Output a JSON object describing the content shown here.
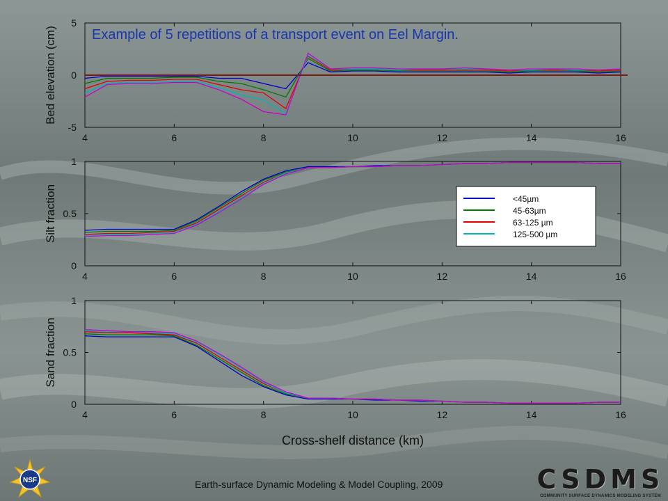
{
  "slide": {
    "footer": "Earth-surface Dynamic Modeling & Model Coupling, 2009",
    "logos": {
      "nsf": {
        "text": "NSF",
        "icon": "nsf-logo-icon"
      },
      "csdms": {
        "word": "CSDMS",
        "subtitle": "COMMUNITY SURFACE DYNAMICS MODELING SYSTEM",
        "icon": "csdms-logo-icon"
      }
    }
  },
  "chart_data": [
    {
      "type": "line",
      "title": "Example of 5 repetitions of a transport event on Eel Margin.",
      "xlabel": "",
      "ylabel": "Bed elevation (cm)",
      "xlim": [
        4,
        16
      ],
      "ylim": [
        -5,
        5
      ],
      "xticks": [
        "4",
        "6",
        "8",
        "10",
        "12",
        "14",
        "16"
      ],
      "yticks": [
        "-5",
        "0",
        "5"
      ],
      "reference_line": {
        "y": 0,
        "color": "#7a1a10"
      },
      "x": [
        4,
        4.5,
        5,
        5.5,
        6,
        6.5,
        7,
        7.5,
        8,
        8.5,
        9,
        9.5,
        10,
        10.5,
        11,
        11.5,
        12,
        12.5,
        13,
        13.5,
        14,
        14.5,
        15,
        15.5,
        16
      ],
      "series": [
        {
          "color": "#0000cc",
          "values": [
            -0.3,
            -0.1,
            -0.1,
            -0.1,
            -0.1,
            -0.1,
            -0.3,
            -0.3,
            -0.8,
            -1.3,
            1.2,
            0.3,
            0.4,
            0.4,
            0.3,
            0.3,
            0.3,
            0.3,
            0.3,
            0.2,
            0.3,
            0.3,
            0.3,
            0.2,
            0.3
          ]
        },
        {
          "color": "#007a00",
          "values": [
            -0.8,
            -0.3,
            -0.3,
            -0.3,
            -0.2,
            -0.2,
            -0.6,
            -0.8,
            -1.4,
            -2.1,
            1.6,
            0.4,
            0.5,
            0.5,
            0.4,
            0.4,
            0.4,
            0.4,
            0.4,
            0.3,
            0.4,
            0.4,
            0.4,
            0.3,
            0.4
          ]
        },
        {
          "color": "#e00000",
          "values": [
            -1.3,
            -0.6,
            -0.5,
            -0.5,
            -0.4,
            -0.4,
            -0.9,
            -1.4,
            -1.7,
            -3.2,
            1.8,
            0.5,
            0.6,
            0.6,
            0.5,
            0.5,
            0.5,
            0.5,
            0.5,
            0.4,
            0.5,
            0.5,
            0.5,
            0.4,
            0.5
          ]
        },
        {
          "color": "#00b5b5",
          "values": [
            -1.7,
            -0.8,
            -0.7,
            -0.7,
            -0.6,
            -0.6,
            -1.2,
            -1.9,
            -2.4,
            -3.7,
            1.9,
            0.6,
            0.6,
            0.6,
            0.5,
            0.6,
            0.6,
            0.6,
            0.6,
            0.5,
            0.5,
            0.6,
            0.5,
            0.5,
            0.6
          ]
        },
        {
          "color": "#cc00cc",
          "values": [
            -2.1,
            -0.9,
            -0.8,
            -0.8,
            -0.7,
            -0.7,
            -1.4,
            -2.3,
            -3.5,
            -3.8,
            2.1,
            0.6,
            0.7,
            0.7,
            0.6,
            0.6,
            0.6,
            0.7,
            0.6,
            0.5,
            0.6,
            0.6,
            0.6,
            0.5,
            0.6
          ]
        }
      ]
    },
    {
      "type": "line",
      "title": "",
      "xlabel": "",
      "ylabel": "Silt fraction",
      "xlim": [
        4,
        16
      ],
      "ylim": [
        0,
        1
      ],
      "xticks": [
        "4",
        "6",
        "8",
        "10",
        "12",
        "14",
        "16"
      ],
      "yticks": [
        "0",
        "0.5",
        "1"
      ],
      "legend": {
        "placement": "right-middle",
        "entries": [
          {
            "label": "<45µm",
            "color": "#0000cc"
          },
          {
            "label": "45-63µm",
            "color": "#007a00"
          },
          {
            "label": "63-125 µm",
            "color": "#e00000"
          },
          {
            "label": "125-500 µm",
            "color": "#00b5b5"
          }
        ]
      },
      "x": [
        4,
        4.5,
        5,
        5.5,
        6,
        6.5,
        7,
        7.5,
        8,
        8.5,
        9,
        9.5,
        10,
        10.5,
        11,
        11.5,
        12,
        12.5,
        13,
        13.5,
        14,
        14.5,
        15,
        15.5,
        16
      ],
      "series": [
        {
          "color": "#0000cc",
          "values": [
            0.34,
            0.35,
            0.35,
            0.35,
            0.35,
            0.44,
            0.57,
            0.71,
            0.83,
            0.91,
            0.95,
            0.95,
            0.95,
            0.96,
            0.96,
            0.96,
            0.97,
            0.98,
            0.98,
            0.99,
            0.99,
            0.99,
            0.99,
            0.98,
            0.98
          ]
        },
        {
          "color": "#007a00",
          "values": [
            0.32,
            0.33,
            0.33,
            0.33,
            0.34,
            0.43,
            0.56,
            0.69,
            0.82,
            0.9,
            0.94,
            0.94,
            0.95,
            0.95,
            0.96,
            0.96,
            0.97,
            0.98,
            0.98,
            0.99,
            0.99,
            0.99,
            0.99,
            0.98,
            0.98
          ]
        },
        {
          "color": "#e00000",
          "values": [
            0.3,
            0.31,
            0.31,
            0.32,
            0.33,
            0.41,
            0.54,
            0.67,
            0.8,
            0.89,
            0.94,
            0.94,
            0.95,
            0.95,
            0.96,
            0.96,
            0.97,
            0.98,
            0.98,
            0.99,
            0.99,
            0.99,
            0.99,
            0.98,
            0.98
          ]
        },
        {
          "color": "#00b5b5",
          "values": [
            0.29,
            0.3,
            0.3,
            0.31,
            0.32,
            0.4,
            0.52,
            0.65,
            0.79,
            0.89,
            0.94,
            0.94,
            0.95,
            0.95,
            0.96,
            0.96,
            0.97,
            0.98,
            0.98,
            0.99,
            0.99,
            0.99,
            0.99,
            0.98,
            0.98
          ]
        },
        {
          "color": "#cc00cc",
          "values": [
            0.28,
            0.29,
            0.29,
            0.3,
            0.31,
            0.39,
            0.51,
            0.64,
            0.78,
            0.88,
            0.94,
            0.94,
            0.95,
            0.95,
            0.96,
            0.96,
            0.97,
            0.98,
            0.98,
            0.99,
            0.99,
            0.99,
            0.99,
            0.98,
            0.98
          ]
        }
      ]
    },
    {
      "type": "line",
      "title": "",
      "xlabel": "Cross-shelf distance (km)",
      "ylabel": "Sand fraction",
      "xlim": [
        4,
        16
      ],
      "ylim": [
        0,
        1
      ],
      "xticks": [
        "4",
        "6",
        "8",
        "10",
        "12",
        "14",
        "16"
      ],
      "yticks": [
        "0",
        "0.5",
        "1"
      ],
      "x": [
        4,
        4.5,
        5,
        5.5,
        6,
        6.5,
        7,
        7.5,
        8,
        8.5,
        9,
        9.5,
        10,
        10.5,
        11,
        11.5,
        12,
        12.5,
        13,
        13.5,
        14,
        14.5,
        15,
        15.5,
        16
      ],
      "series": [
        {
          "color": "#0000cc",
          "values": [
            0.66,
            0.65,
            0.65,
            0.65,
            0.65,
            0.56,
            0.42,
            0.28,
            0.17,
            0.09,
            0.05,
            0.05,
            0.05,
            0.04,
            0.04,
            0.03,
            0.03,
            0.02,
            0.02,
            0.01,
            0.01,
            0.01,
            0.01,
            0.02,
            0.02
          ]
        },
        {
          "color": "#007a00",
          "values": [
            0.68,
            0.67,
            0.67,
            0.67,
            0.66,
            0.57,
            0.44,
            0.31,
            0.18,
            0.1,
            0.06,
            0.06,
            0.05,
            0.05,
            0.04,
            0.04,
            0.03,
            0.02,
            0.02,
            0.01,
            0.01,
            0.01,
            0.01,
            0.02,
            0.02
          ]
        },
        {
          "color": "#e00000",
          "values": [
            0.7,
            0.69,
            0.69,
            0.68,
            0.67,
            0.59,
            0.46,
            0.33,
            0.2,
            0.11,
            0.06,
            0.06,
            0.05,
            0.05,
            0.04,
            0.04,
            0.03,
            0.02,
            0.02,
            0.01,
            0.01,
            0.01,
            0.01,
            0.02,
            0.02
          ]
        },
        {
          "color": "#00b5b5",
          "values": [
            0.71,
            0.7,
            0.7,
            0.69,
            0.68,
            0.6,
            0.48,
            0.35,
            0.21,
            0.11,
            0.06,
            0.06,
            0.05,
            0.05,
            0.04,
            0.04,
            0.03,
            0.02,
            0.02,
            0.01,
            0.01,
            0.01,
            0.01,
            0.02,
            0.02
          ]
        },
        {
          "color": "#cc00cc",
          "values": [
            0.72,
            0.71,
            0.7,
            0.7,
            0.69,
            0.61,
            0.49,
            0.36,
            0.22,
            0.12,
            0.06,
            0.06,
            0.05,
            0.05,
            0.04,
            0.04,
            0.03,
            0.02,
            0.02,
            0.01,
            0.01,
            0.01,
            0.01,
            0.02,
            0.02
          ]
        }
      ]
    }
  ]
}
